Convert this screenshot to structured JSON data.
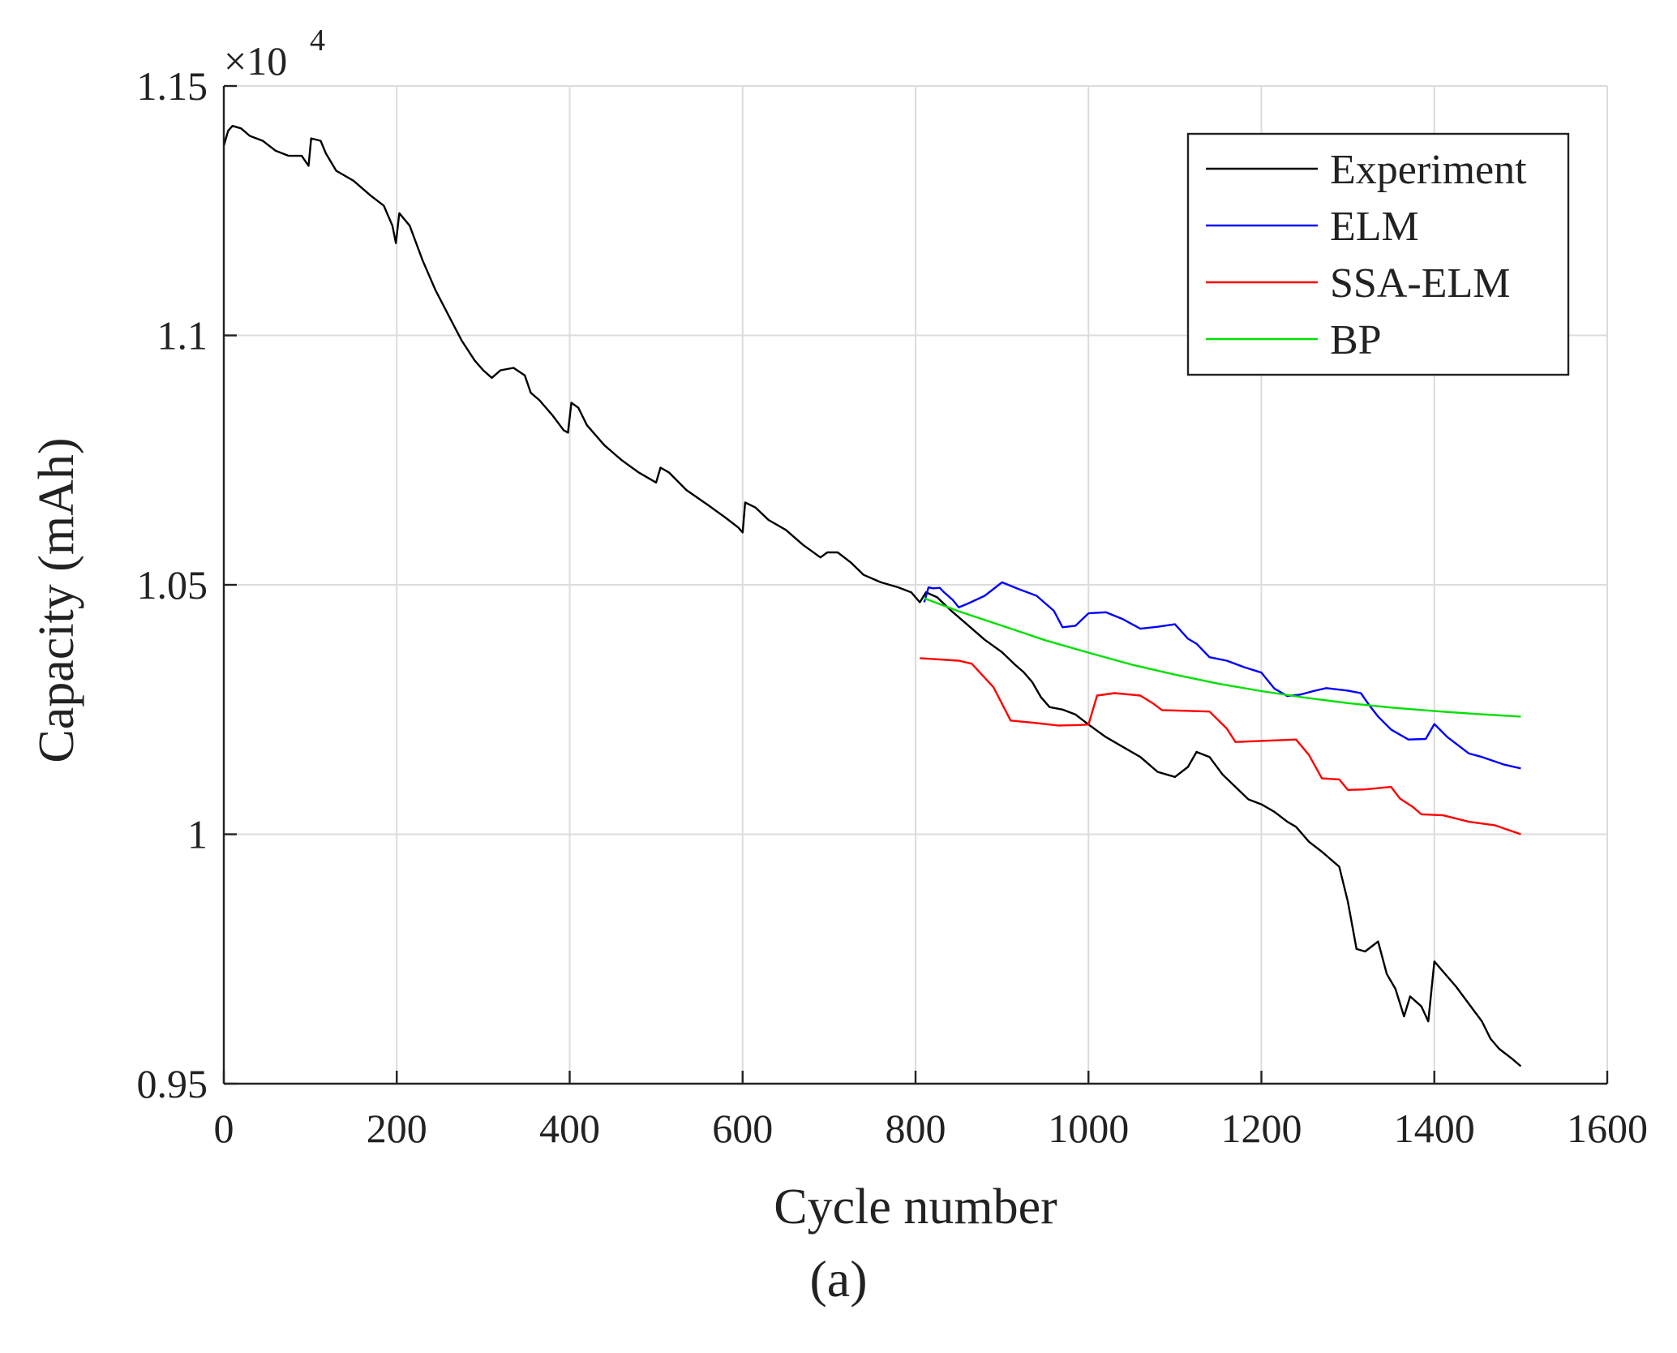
{
  "chart_data": {
    "type": "line",
    "title": "",
    "xlabel": "Cycle number",
    "ylabel": "Capacity (mAh)",
    "xlim": [
      0,
      1600
    ],
    "ylim": [
      0.95,
      1.15
    ],
    "y_exponent_label": "×10",
    "y_exponent_power": "4",
    "x_ticks": [
      "0",
      "200",
      "400",
      "600",
      "800",
      "1000",
      "1200",
      "1400",
      "1600"
    ],
    "y_ticks": [
      "0.95",
      "1",
      "1.05",
      "1.1",
      "1.15"
    ],
    "x_tick_values": [
      0,
      200,
      400,
      600,
      800,
      1000,
      1200,
      1400,
      1600
    ],
    "y_tick_values": [
      0.95,
      1.0,
      1.05,
      1.1,
      1.15
    ],
    "grid": true,
    "legend_position": "top-right",
    "caption": "(a)",
    "series": [
      {
        "name": "Experiment",
        "color": "#000000",
        "points": [
          [
            0,
            1.138
          ],
          [
            5,
            1.141
          ],
          [
            10,
            1.142
          ],
          [
            20,
            1.1415
          ],
          [
            30,
            1.14
          ],
          [
            45,
            1.139
          ],
          [
            60,
            1.137
          ],
          [
            75,
            1.136
          ],
          [
            90,
            1.136
          ],
          [
            98,
            1.134
          ],
          [
            101,
            1.1395
          ],
          [
            112,
            1.139
          ],
          [
            118,
            1.1365
          ],
          [
            130,
            1.133
          ],
          [
            150,
            1.131
          ],
          [
            170,
            1.128
          ],
          [
            185,
            1.126
          ],
          [
            195,
            1.122
          ],
          [
            199,
            1.1185
          ],
          [
            203,
            1.1245
          ],
          [
            215,
            1.122
          ],
          [
            230,
            1.115
          ],
          [
            245,
            1.109
          ],
          [
            260,
            1.104
          ],
          [
            275,
            1.099
          ],
          [
            290,
            1.095
          ],
          [
            300,
            1.093
          ],
          [
            310,
            1.0915
          ],
          [
            320,
            1.093
          ],
          [
            335,
            1.0935
          ],
          [
            348,
            1.092
          ],
          [
            355,
            1.0885
          ],
          [
            365,
            1.087
          ],
          [
            380,
            1.084
          ],
          [
            393,
            1.081
          ],
          [
            398,
            1.0805
          ],
          [
            402,
            1.0865
          ],
          [
            410,
            1.0855
          ],
          [
            420,
            1.082
          ],
          [
            440,
            1.078
          ],
          [
            460,
            1.075
          ],
          [
            480,
            1.0725
          ],
          [
            500,
            1.0705
          ],
          [
            505,
            1.0735
          ],
          [
            515,
            1.0725
          ],
          [
            535,
            1.069
          ],
          [
            560,
            1.066
          ],
          [
            580,
            1.0635
          ],
          [
            595,
            1.0615
          ],
          [
            600,
            1.0605
          ],
          [
            603,
            1.0665
          ],
          [
            615,
            1.0655
          ],
          [
            630,
            1.063
          ],
          [
            650,
            1.061
          ],
          [
            670,
            1.058
          ],
          [
            690,
            1.0555
          ],
          [
            698,
            1.0565
          ],
          [
            710,
            1.0565
          ],
          [
            725,
            1.0545
          ],
          [
            740,
            1.052
          ],
          [
            760,
            1.0505
          ],
          [
            780,
            1.0495
          ],
          [
            795,
            1.0485
          ],
          [
            805,
            1.0465
          ],
          [
            812,
            1.0485
          ],
          [
            825,
            1.0475
          ],
          [
            840,
            1.045
          ],
          [
            860,
            1.042
          ],
          [
            880,
            1.039
          ],
          [
            900,
            1.0365
          ],
          [
            915,
            1.034
          ],
          [
            925,
            1.0325
          ],
          [
            935,
            1.0305
          ],
          [
            945,
            1.0275
          ],
          [
            955,
            1.0255
          ],
          [
            970,
            1.025
          ],
          [
            985,
            1.024
          ],
          [
            1000,
            1.022
          ],
          [
            1020,
            1.0195
          ],
          [
            1040,
            1.0175
          ],
          [
            1060,
            1.0155
          ],
          [
            1080,
            1.0125
          ],
          [
            1100,
            1.0115
          ],
          [
            1115,
            1.0135
          ],
          [
            1125,
            1.0165
          ],
          [
            1140,
            1.0155
          ],
          [
            1155,
            1.012
          ],
          [
            1170,
            1.0095
          ],
          [
            1185,
            1.007
          ],
          [
            1200,
            1.006
          ],
          [
            1215,
            1.0045
          ],
          [
            1230,
            1.0025
          ],
          [
            1240,
            1.0015
          ],
          [
            1255,
            0.9985
          ],
          [
            1270,
            0.9965
          ],
          [
            1290,
            0.9935
          ],
          [
            1300,
            0.9865
          ],
          [
            1310,
            0.977
          ],
          [
            1320,
            0.9765
          ],
          [
            1335,
            0.9785
          ],
          [
            1345,
            0.972
          ],
          [
            1355,
            0.969
          ],
          [
            1365,
            0.9635
          ],
          [
            1372,
            0.9675
          ],
          [
            1385,
            0.9655
          ],
          [
            1393,
            0.9625
          ],
          [
            1400,
            0.9745
          ],
          [
            1410,
            0.9725
          ],
          [
            1425,
            0.9695
          ],
          [
            1440,
            0.966
          ],
          [
            1455,
            0.9625
          ],
          [
            1465,
            0.959
          ],
          [
            1475,
            0.957
          ],
          [
            1490,
            0.955
          ],
          [
            1500,
            0.9535
          ]
        ]
      },
      {
        "name": "ELM",
        "color": "#0000ff",
        "points": [
          [
            810,
            1.0465
          ],
          [
            815,
            1.0495
          ],
          [
            820,
            1.0493
          ],
          [
            828,
            1.0494
          ],
          [
            833,
            1.0485
          ],
          [
            843,
            1.047
          ],
          [
            850,
            1.0455
          ],
          [
            860,
            1.0462
          ],
          [
            880,
            1.0478
          ],
          [
            900,
            1.0505
          ],
          [
            920,
            1.0491
          ],
          [
            940,
            1.0478
          ],
          [
            960,
            1.0448
          ],
          [
            970,
            1.0415
          ],
          [
            985,
            1.0418
          ],
          [
            1000,
            1.0443
          ],
          [
            1020,
            1.0445
          ],
          [
            1040,
            1.0431
          ],
          [
            1060,
            1.0412
          ],
          [
            1080,
            1.0416
          ],
          [
            1100,
            1.0421
          ],
          [
            1115,
            1.0392
          ],
          [
            1125,
            1.0382
          ],
          [
            1140,
            1.0355
          ],
          [
            1160,
            1.0348
          ],
          [
            1180,
            1.0335
          ],
          [
            1200,
            1.0324
          ],
          [
            1215,
            1.0292
          ],
          [
            1230,
            1.0277
          ],
          [
            1245,
            1.028
          ],
          [
            1260,
            1.0287
          ],
          [
            1275,
            1.0293
          ],
          [
            1290,
            1.029
          ],
          [
            1300,
            1.0288
          ],
          [
            1315,
            1.0283
          ],
          [
            1325,
            1.0258
          ],
          [
            1335,
            1.0236
          ],
          [
            1350,
            1.021
          ],
          [
            1370,
            1.019
          ],
          [
            1390,
            1.0191
          ],
          [
            1400,
            1.0221
          ],
          [
            1415,
            1.0195
          ],
          [
            1440,
            1.0162
          ],
          [
            1455,
            1.0155
          ],
          [
            1480,
            1.014
          ],
          [
            1500,
            1.0132
          ]
        ]
      },
      {
        "name": "SSA-ELM",
        "color": "#ff0000",
        "points": [
          [
            805,
            1.0353
          ],
          [
            850,
            1.0348
          ],
          [
            865,
            1.0342
          ],
          [
            890,
            1.0295
          ],
          [
            910,
            1.0228
          ],
          [
            940,
            1.0223
          ],
          [
            965,
            1.0218
          ],
          [
            990,
            1.0219
          ],
          [
            1000,
            1.022
          ],
          [
            1010,
            1.0278
          ],
          [
            1030,
            1.0283
          ],
          [
            1060,
            1.0278
          ],
          [
            1075,
            1.0262
          ],
          [
            1085,
            1.0249
          ],
          [
            1140,
            1.0246
          ],
          [
            1160,
            1.0212
          ],
          [
            1170,
            1.0185
          ],
          [
            1240,
            1.019
          ],
          [
            1255,
            1.0159
          ],
          [
            1270,
            1.0112
          ],
          [
            1290,
            1.011
          ],
          [
            1300,
            1.0089
          ],
          [
            1320,
            1.009
          ],
          [
            1350,
            1.0095
          ],
          [
            1360,
            1.0072
          ],
          [
            1375,
            1.0055
          ],
          [
            1385,
            1.004
          ],
          [
            1410,
            1.0038
          ],
          [
            1440,
            1.0025
          ],
          [
            1470,
            1.0018
          ],
          [
            1480,
            1.0012
          ],
          [
            1500,
            1.0
          ]
        ]
      },
      {
        "name": "BP",
        "color": "#00e000",
        "points": [
          [
            810,
            1.0473
          ],
          [
            850,
            1.0447
          ],
          [
            900,
            1.0418
          ],
          [
            950,
            1.0389
          ],
          [
            1000,
            1.0364
          ],
          [
            1050,
            1.034
          ],
          [
            1100,
            1.032
          ],
          [
            1150,
            1.0302
          ],
          [
            1200,
            1.0287
          ],
          [
            1250,
            1.0274
          ],
          [
            1300,
            1.0263
          ],
          [
            1350,
            1.0254
          ],
          [
            1400,
            1.0247
          ],
          [
            1450,
            1.0241
          ],
          [
            1500,
            1.0236
          ]
        ]
      }
    ]
  }
}
